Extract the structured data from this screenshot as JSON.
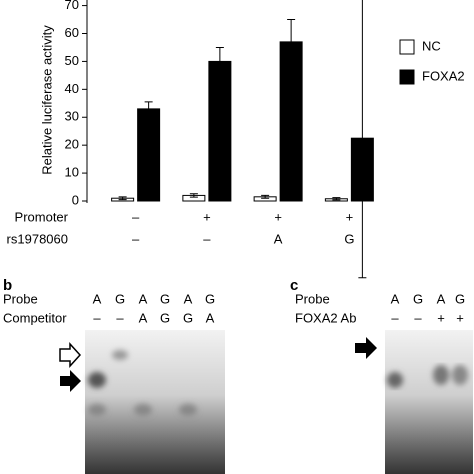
{
  "chart_data": {
    "type": "bar",
    "y_label": "Relative luciferase activity",
    "ylim": [
      0,
      72
    ],
    "yticks": [
      0,
      10,
      20,
      30,
      40,
      50,
      60,
      70
    ],
    "series": [
      {
        "name": "NC",
        "color": "#ffffff",
        "values": [
          1,
          2,
          1.5,
          0.8
        ],
        "errors": [
          0.5,
          0.6,
          0.5,
          0.4
        ]
      },
      {
        "name": "FOXA2",
        "color": "#000000",
        "values": [
          33,
          50,
          57,
          22.5
        ],
        "errors": [
          2.5,
          5,
          8,
          50
        ]
      }
    ],
    "category_rows": [
      {
        "label": "Promoter",
        "values": [
          "–",
          "+",
          "+",
          "+"
        ]
      },
      {
        "label": "rs1978060",
        "values": [
          "–",
          "–",
          "A",
          "G"
        ]
      }
    ]
  },
  "panels": [
    {
      "label": "b",
      "rows": [
        {
          "label": "Probe",
          "values": [
            "A",
            "G",
            "A",
            "G",
            "A",
            "G"
          ]
        },
        {
          "label": "Competitor",
          "values": [
            "–",
            "–",
            "A",
            "G",
            "G",
            "A"
          ]
        }
      ]
    },
    {
      "label": "c",
      "rows": [
        {
          "label": "Probe",
          "values": [
            "A",
            "G",
            "A",
            "G"
          ]
        },
        {
          "label": "FOXA2 Ab",
          "values": [
            "–",
            "–",
            "+",
            "+"
          ]
        }
      ]
    }
  ]
}
